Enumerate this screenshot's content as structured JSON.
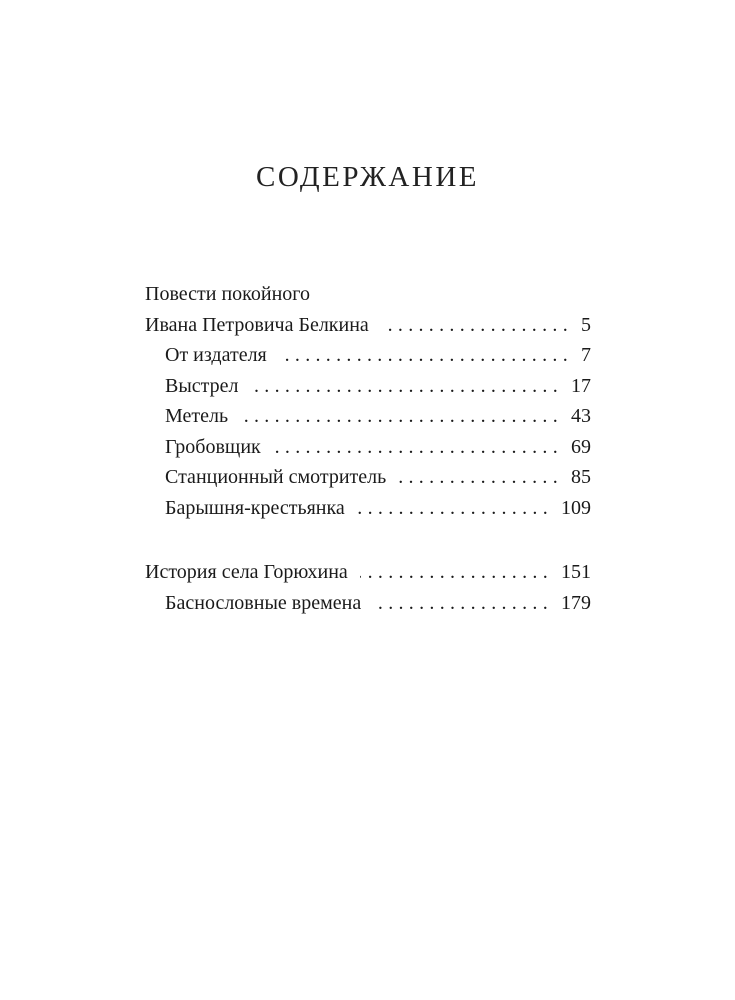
{
  "title": "СОДЕРЖАНИЕ",
  "entries": [
    {
      "label": "Повести покойного",
      "page": ""
    },
    {
      "label": "Ивана Петровича Белкина",
      "page": "5"
    },
    {
      "label": "От издателя",
      "page": "7"
    },
    {
      "label": "Выстрел",
      "page": "17"
    },
    {
      "label": "Метель",
      "page": "43"
    },
    {
      "label": "Гробовщик",
      "page": "69"
    },
    {
      "label": "Станционный смотритель",
      "page": "85"
    },
    {
      "label": "Барышня-крестьянка",
      "page": "109"
    },
    {
      "label": "История села Горюхина",
      "page": "151"
    },
    {
      "label": "Баснословные времена",
      "page": "179"
    }
  ]
}
